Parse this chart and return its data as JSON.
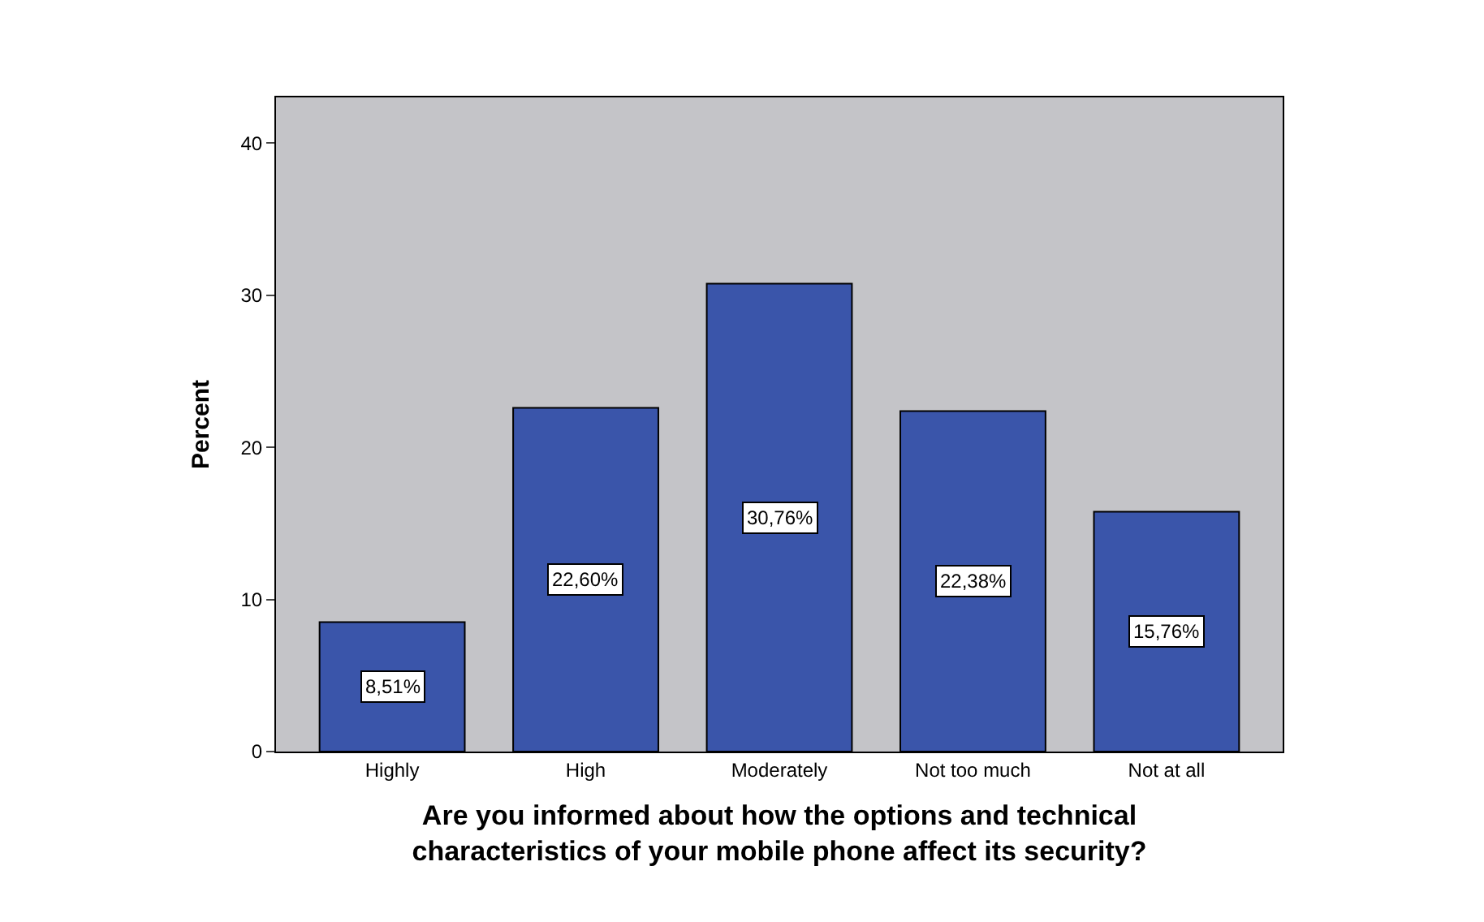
{
  "chart_data": {
    "type": "bar",
    "categories": [
      "Highly",
      "High",
      "Moderately",
      "Not too much",
      "Not at all"
    ],
    "values": [
      8.51,
      22.6,
      30.76,
      22.38,
      15.76
    ],
    "value_labels": [
      "8,51%",
      "22,60%",
      "30,76%",
      "22,38%",
      "15,76%"
    ],
    "color": "#3a55aa",
    "ylabel": "Percent",
    "xlabel": "Are you informed about how the options and technical\ncharacteristics of your mobile phone affect its security?",
    "ylim": [
      0,
      43
    ],
    "yticks": [
      0,
      10,
      20,
      30,
      40
    ],
    "grid": false
  }
}
